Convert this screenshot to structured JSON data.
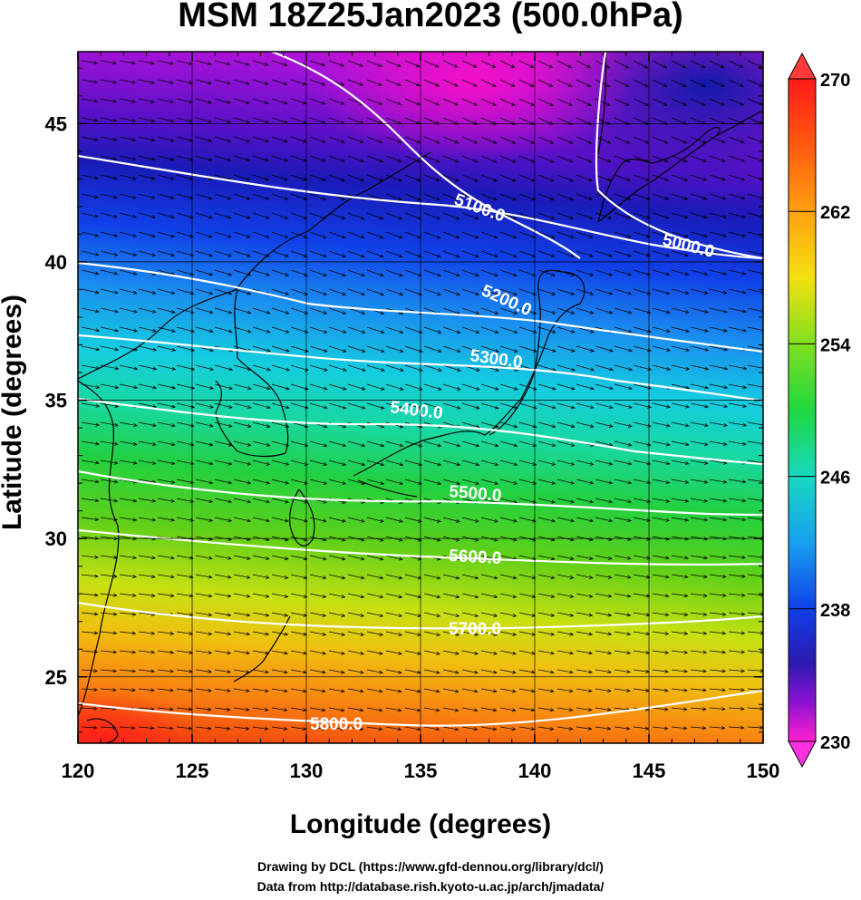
{
  "title": "MSM 18Z25Jan2023 (500.0hPa)",
  "xlabel": "Longitude (degrees)",
  "ylabel": "Latitude  (degrees)",
  "x_ticks": [
    "120",
    "125",
    "130",
    "135",
    "140",
    "145",
    "150"
  ],
  "y_ticks": [
    "25",
    "30",
    "35",
    "40",
    "45"
  ],
  "colorbar_ticks": [
    "270",
    "262",
    "254",
    "246",
    "238",
    "230"
  ],
  "contours": [
    "5000.0",
    "5100.0",
    "5200.0",
    "5300.0",
    "5400.0",
    "5500.0",
    "5600.0",
    "5700.0",
    "5800.0"
  ],
  "credits": {
    "line1": "Drawing by DCL (https://www.gfd-dennou.org/library/dcl/)",
    "line2": "Data from http://database.rish.kyoto-u.ac.jp/arch/jmadata/"
  },
  "colors": {
    "colorbar_top": "#ff1a1a",
    "colorbar_bottom": "#ff20d0",
    "contour": "#ffffff",
    "vector": "#000000"
  },
  "chart_data": {
    "type": "heatmap",
    "title": "MSM 18Z25Jan2023 (500.0hPa)",
    "xlabel": "Longitude (degrees)",
    "ylabel": "Latitude  (degrees)",
    "xlim": [
      120,
      150
    ],
    "ylim": [
      22.6,
      47.6
    ],
    "colorbar_range": [
      230,
      270
    ],
    "contour_levels": [
      5000,
      5100,
      5200,
      5300,
      5400,
      5500,
      5600,
      5700,
      5800
    ],
    "grid": true
  }
}
